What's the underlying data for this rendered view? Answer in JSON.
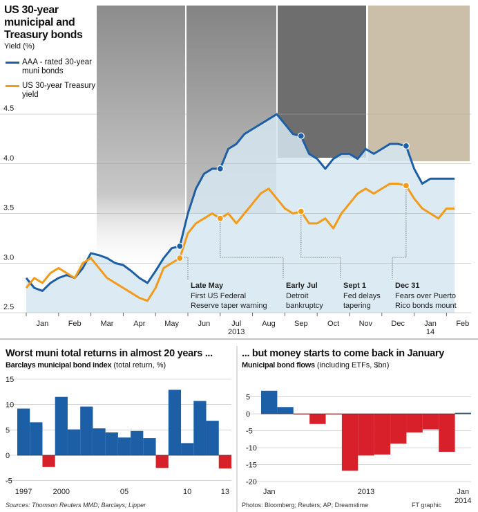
{
  "chart_data": [
    {
      "type": "line",
      "title": "US 30-year municipal and Treasury bonds",
      "y_label": "Yield (%)",
      "categories": [
        "Jan",
        null,
        null,
        null,
        "Feb",
        null,
        null,
        null,
        "Mar",
        null,
        null,
        null,
        "Apr",
        null,
        null,
        null,
        "May",
        null,
        null,
        null,
        "Jun",
        null,
        null,
        null,
        "Jul",
        null,
        null,
        null,
        "Aug",
        null,
        null,
        null,
        "Sep",
        null,
        null,
        null,
        "Oct",
        null,
        null,
        null,
        "Nov",
        null,
        null,
        null,
        "Dec",
        null,
        null,
        null,
        "Jan",
        null,
        null,
        null,
        "Feb",
        null
      ],
      "year_labels": [
        "2013",
        "14"
      ],
      "series": [
        {
          "name": "AAA - rated 30-year muni bonds",
          "color": "#1d5fa6",
          "values": [
            2.85,
            2.75,
            2.72,
            2.8,
            2.85,
            2.88,
            2.85,
            2.95,
            3.1,
            3.08,
            3.05,
            3.0,
            2.98,
            2.92,
            2.85,
            2.8,
            2.92,
            3.05,
            3.15,
            3.17,
            3.5,
            3.75,
            3.9,
            3.95,
            3.95,
            4.15,
            4.2,
            4.3,
            4.35,
            4.4,
            4.45,
            4.5,
            4.4,
            4.3,
            4.28,
            4.1,
            4.05,
            3.95,
            4.05,
            4.1,
            4.1,
            4.05,
            4.15,
            4.1,
            4.15,
            4.2,
            4.2,
            4.18,
            3.95,
            3.8,
            3.85,
            3.85,
            3.85,
            3.85
          ]
        },
        {
          "name": "US 30-year Treasury yield",
          "color": "#f29a1a",
          "values": [
            2.75,
            2.85,
            2.8,
            2.9,
            2.95,
            2.9,
            2.85,
            3.0,
            3.05,
            2.95,
            2.85,
            2.8,
            2.75,
            2.7,
            2.65,
            2.62,
            2.75,
            2.95,
            3.0,
            3.05,
            3.3,
            3.4,
            3.45,
            3.5,
            3.45,
            3.5,
            3.4,
            3.5,
            3.6,
            3.7,
            3.75,
            3.65,
            3.55,
            3.5,
            3.52,
            3.4,
            3.4,
            3.45,
            3.35,
            3.5,
            3.6,
            3.7,
            3.75,
            3.7,
            3.75,
            3.8,
            3.8,
            3.78,
            3.65,
            3.55,
            3.5,
            3.45,
            3.55,
            3.55
          ]
        }
      ],
      "ylim": [
        2.5,
        4.5
      ],
      "yticks": [
        2.5,
        {
          "value": 3,
          "label": "3.0"
        },
        3.5,
        {
          "value": 4,
          "label": "4.0"
        },
        4.5
      ],
      "grid": true,
      "annotations": [
        {
          "title": "Late May",
          "text": [
            "First US Federal",
            "Reserve taper warning"
          ],
          "point": 19
        },
        {
          "title": "Early Jul",
          "text": [
            "Detroit",
            "bankruptcy"
          ],
          "point": 24
        },
        {
          "title": "Sept 1",
          "text": [
            "Fed delays",
            "tapering"
          ],
          "point": 34
        },
        {
          "title": "Dec 31",
          "text": [
            "Fears over Puerto",
            "Rico bonds mount"
          ],
          "point": 47
        }
      ]
    },
    {
      "type": "bar",
      "title": "Worst muni total returns in almost 20 years ...",
      "subtitle": "Barclays municipal bond index",
      "unit": "(total return, %)",
      "categories": [
        "1997",
        null,
        null,
        "2000",
        null,
        null,
        null,
        null,
        "05",
        null,
        null,
        null,
        null,
        "10",
        null,
        null,
        "13"
      ],
      "values": [
        9.2,
        6.5,
        -2.3,
        11.5,
        5.1,
        9.6,
        5.3,
        4.5,
        3.5,
        4.8,
        3.4,
        -2.5,
        12.9,
        2.4,
        10.7,
        6.8,
        -2.6
      ],
      "color": "#1d5fa6",
      "negative_color": "#d7202a",
      "ylim": [
        -6,
        15
      ],
      "yticks": [
        15,
        10,
        5,
        0,
        -5
      ],
      "grid": true,
      "source": "Sources: Thomson Reuters MMD; Barclays; Lipper"
    },
    {
      "type": "bar",
      "title": "... but money starts to come back in January",
      "subtitle": "Municipal bond flows",
      "unit": "(including ETFs, $bn)",
      "categories": [
        "Jan",
        null,
        null,
        null,
        null,
        null,
        null,
        null,
        null,
        null,
        null,
        null,
        "Jan"
      ],
      "year_labels": [
        "2013",
        "2014"
      ],
      "values": [
        6.8,
        2.0,
        -0.2,
        -3.0,
        -0.2,
        -16.8,
        -12.3,
        -12.0,
        -8.8,
        -5.5,
        -4.6,
        -11.2,
        0.3
      ],
      "color": "#1d5fa6",
      "negative_color": "#d7202a",
      "ylim": [
        -21,
        9
      ],
      "yticks": [
        5,
        0,
        -5,
        -10,
        -15,
        -20
      ],
      "grid": true,
      "source": "Photos: Bloomberg; Reuters; AP; Dreamstime",
      "credit": "FT graphic"
    }
  ]
}
